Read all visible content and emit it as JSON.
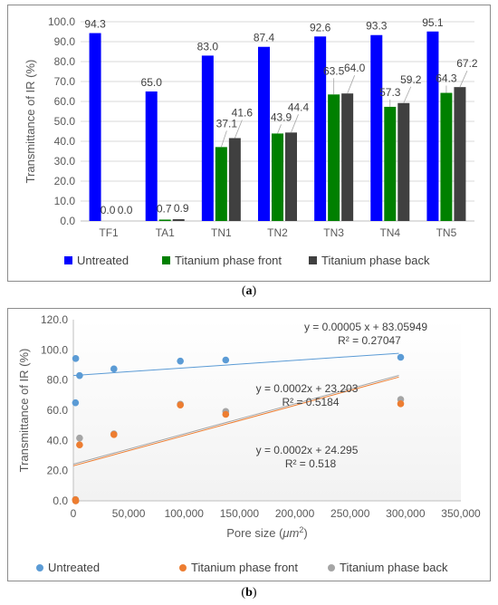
{
  "captions": {
    "a_open": "(",
    "a_letter": "a",
    "a_close": ")",
    "b_open": "(",
    "b_letter": "b",
    "b_close": ")"
  },
  "chart_data": [
    {
      "type": "bar",
      "ylabel": "Transmittance of IR  (%)",
      "xlabel": "",
      "ylim": [
        0,
        100
      ],
      "y_ticks": [
        "0.0",
        "10.0",
        "20.0",
        "30.0",
        "40.0",
        "50.0",
        "60.0",
        "70.0",
        "80.0",
        "90.0",
        "100.0"
      ],
      "grid": true,
      "legend_position": "bottom",
      "categories": [
        "TF1",
        "TA1",
        "TN1",
        "TN2",
        "TN3",
        "TN4",
        "TN5"
      ],
      "series": [
        {
          "name": "Untreated",
          "color": "#0000ff",
          "values": [
            94.3,
            65.0,
            83.0,
            87.4,
            92.6,
            93.3,
            95.1
          ],
          "labels": [
            "94.3",
            "65.0",
            "83.0",
            "87.4",
            "92.6",
            "93.3",
            "95.1"
          ]
        },
        {
          "name": "Titanium phase front",
          "color": "#008000",
          "values": [
            0.0,
            0.7,
            37.1,
            43.9,
            63.5,
            57.3,
            64.3
          ],
          "labels": [
            "0.0",
            "0.7",
            "37.1",
            "43.9",
            "63.5",
            "57.3",
            "64.3"
          ]
        },
        {
          "name": "Titanium phase back",
          "color": "#404040",
          "values": [
            0.0,
            0.9,
            41.6,
            44.4,
            64.0,
            59.2,
            67.2
          ],
          "labels": [
            "0.0",
            "0.9",
            "41.6",
            "44.4",
            "64.0",
            "59.2",
            "67.2"
          ]
        }
      ]
    },
    {
      "type": "scatter",
      "ylabel": "Transmittance of IR  (%)",
      "xlabel_prefix": "Pore size (",
      "xlabel_unit": "μm",
      "xlabel_sup": "2",
      "xlabel_suffix": ")",
      "xlim": [
        0,
        350000
      ],
      "ylim": [
        0,
        120
      ],
      "x_ticks": [
        "0",
        "50,000",
        "100,000",
        "150,000",
        "200,000",
        "250,000",
        "300,000",
        "350,000"
      ],
      "y_ticks": [
        "0.0",
        "20.0",
        "40.0",
        "60.0",
        "80.0",
        "100.0",
        "120.0"
      ],
      "grid": false,
      "legend_position": "bottom",
      "series": [
        {
          "name": "Untreated",
          "color": "#5b9bd5",
          "points": [
            [
              500,
              94.3
            ],
            [
              300,
              65.0
            ],
            [
              4000,
              83.0
            ],
            [
              35000,
              87.4
            ],
            [
              95000,
              92.6
            ],
            [
              136000,
              93.3
            ],
            [
              294000,
              95.1
            ]
          ],
          "trendline": {
            "slope": 5e-05,
            "intercept": 83.05949,
            "x_range": [
              0,
              294000
            ]
          },
          "equation": "y = 0.00005 x + 83.05949",
          "r2": "R² = 0.27047"
        },
        {
          "name": "Titanium phase front",
          "color": "#ed7d31",
          "points": [
            [
              500,
              0.0
            ],
            [
              300,
              0.7
            ],
            [
              4000,
              37.1
            ],
            [
              35000,
              43.9
            ],
            [
              95000,
              63.5
            ],
            [
              136000,
              57.3
            ],
            [
              294000,
              64.3
            ]
          ],
          "trendline": {
            "slope": 0.0002,
            "intercept": 23.203,
            "x_range": [
              0,
              294000
            ]
          },
          "equation": "y = 0.0002x + 23.203",
          "r2": "R² = 0.5184"
        },
        {
          "name": "Titanium phase back",
          "color": "#a5a5a5",
          "points": [
            [
              500,
              0.0
            ],
            [
              300,
              0.9
            ],
            [
              4000,
              41.6
            ],
            [
              35000,
              44.4
            ],
            [
              95000,
              64.0
            ],
            [
              136000,
              59.2
            ],
            [
              294000,
              67.2
            ]
          ],
          "trendline": {
            "slope": 0.0002,
            "intercept": 24.295,
            "x_range": [
              0,
              294000
            ]
          },
          "equation": "y = 0.0002x + 24.295",
          "r2": "R² = 0.518"
        }
      ]
    }
  ]
}
